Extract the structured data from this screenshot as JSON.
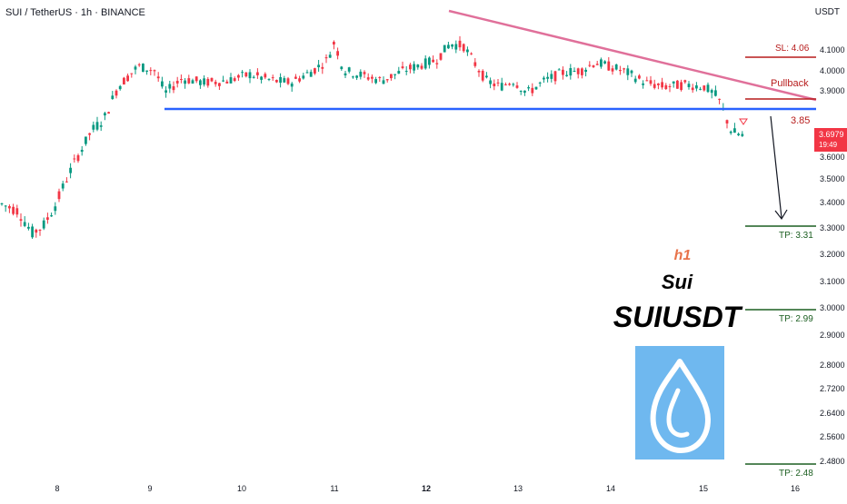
{
  "header": {
    "symbol_line": "SUI / TetherUS · 1h · BINANCE",
    "currency": "USDT"
  },
  "chart_data": {
    "type": "candlestick",
    "x_tick_labels": [
      "8",
      "9",
      "10",
      "11",
      "12",
      "13",
      "14",
      "15",
      "16"
    ],
    "y_tick_labels": [
      "4.1000",
      "4.0000",
      "3.9000",
      "3.7000",
      "3.6000",
      "3.5000",
      "3.4000",
      "3.3000",
      "3.2000",
      "3.1000",
      "3.0000",
      "2.9000",
      "2.8000",
      "2.7200",
      "2.6400",
      "2.5600",
      "2.4800"
    ],
    "last_price": {
      "value": "3.6979",
      "countdown": "19:49",
      "color": "#f23645"
    },
    "levels": [
      {
        "name": "sl",
        "label": "SL: 4.06",
        "value": 4.06,
        "color": "#b71c1c"
      },
      {
        "name": "pullback",
        "label": "Pullback",
        "value": 3.87,
        "color": "#b71c1c"
      },
      {
        "name": "support",
        "label": "3.85",
        "value": 3.85,
        "color": "#2962ff"
      },
      {
        "name": "tp1",
        "label": "TP: 3.31",
        "value": 3.31,
        "color": "#1b5e20"
      },
      {
        "name": "tp2",
        "label": "TP: 2.99",
        "value": 2.99,
        "color": "#1b5e20"
      },
      {
        "name": "tp3",
        "label": "TP: 2.48",
        "value": 2.48,
        "color": "#1b5e20"
      }
    ],
    "trendline": {
      "color": "#e0709a",
      "start_value": 4.19,
      "end_value": 3.88
    },
    "up_color": "#089981",
    "down_color": "#f23645"
  },
  "annotations": {
    "timeframe": "h1",
    "name": "Sui",
    "ticker": "SUIUSDT",
    "timeframe_color": "#e8734a",
    "logo_bg": "#6fb8ef"
  }
}
